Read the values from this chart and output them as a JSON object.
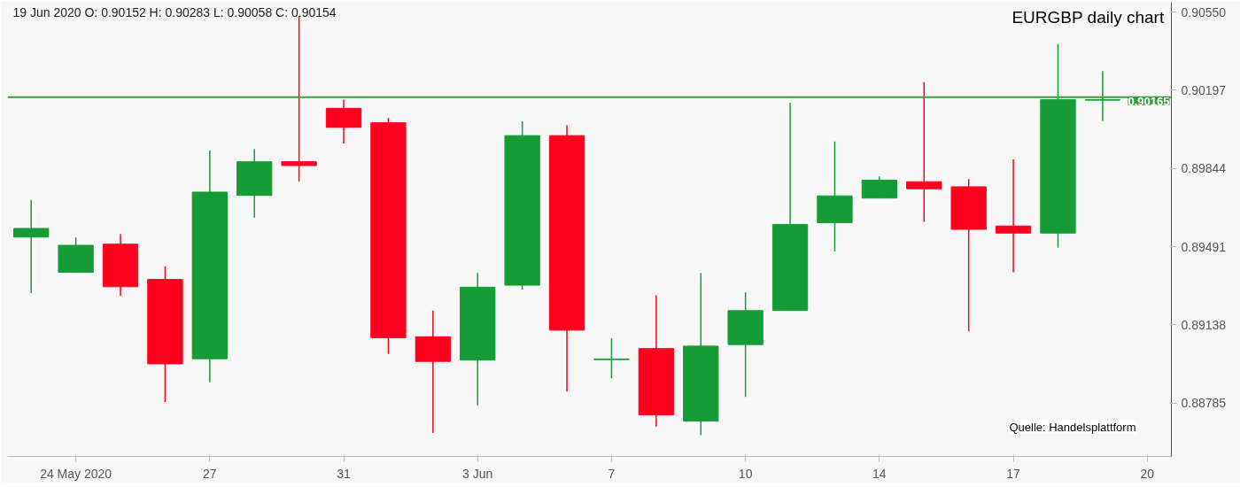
{
  "chart_data": {
    "type": "candlestick",
    "title": "EURGBP daily chart",
    "annotations": [
      "19 Jun 2020 O: 0.90152 H: 0.90283 L: 0.90058 C: 0.90154",
      "Quelle: Handelsplattform"
    ],
    "categories": [
      null,
      "24 May 2020",
      null,
      null,
      "27",
      null,
      null,
      "31",
      null,
      null,
      "3 Jun",
      null,
      null,
      "7",
      null,
      null,
      "10",
      null,
      null,
      "14",
      null,
      null,
      "17",
      null,
      null,
      "20"
    ],
    "ohlc": [
      [
        0.89534,
        0.89702,
        0.89281,
        0.89573
      ],
      [
        0.89375,
        0.89532,
        0.89375,
        0.89497
      ],
      [
        0.89502,
        0.89548,
        0.89268,
        0.8931
      ],
      [
        0.89343,
        0.89402,
        0.8879,
        0.88962
      ],
      [
        0.88985,
        0.89925,
        0.88879,
        0.89737
      ],
      [
        0.89722,
        0.89932,
        0.89622,
        0.89874
      ],
      [
        0.89874,
        0.90532,
        0.89786,
        0.89857
      ],
      [
        0.90115,
        0.90154,
        0.89957,
        0.90029
      ],
      [
        0.9005,
        0.90072,
        0.89007,
        0.8908
      ],
      [
        0.89084,
        0.89202,
        0.8865,
        0.88973
      ],
      [
        0.88979,
        0.89372,
        0.88775,
        0.89308
      ],
      [
        0.89317,
        0.90057,
        0.89297,
        0.89992
      ],
      [
        0.89992,
        0.90039,
        0.88837,
        0.89114
      ],
      [
        0.88981,
        0.89077,
        0.88897,
        0.88984
      ],
      [
        0.89031,
        0.89271,
        0.88679,
        0.88732
      ],
      [
        0.88704,
        0.89372,
        0.8864,
        0.89042
      ],
      [
        0.89049,
        0.89285,
        0.88813,
        0.89202
      ],
      [
        0.89203,
        0.9014,
        0.89203,
        0.89591
      ],
      [
        0.89599,
        0.89966,
        0.89469,
        0.8972
      ],
      [
        0.8971,
        0.89808,
        0.8971,
        0.89791
      ],
      [
        0.89784,
        0.90233,
        0.89603,
        0.89752
      ],
      [
        0.89761,
        0.89796,
        0.89109,
        0.89569
      ],
      [
        0.89584,
        0.89885,
        0.89375,
        0.89552
      ],
      [
        0.89552,
        0.90405,
        0.89486,
        0.90154
      ],
      [
        0.90152,
        0.90283,
        0.90058,
        0.90154
      ],
      null
    ],
    "colors": [
      "#169c36",
      "#169c36",
      "#ff001f",
      "#ff001f",
      "#169c36",
      "#169c36",
      "#ff001f",
      "#ff001f",
      "#ff001f",
      "#ff001f",
      "#169c36",
      "#169c36",
      "#ff001f",
      "#169c36",
      "#ff001f",
      "#169c36",
      "#169c36",
      "#169c36",
      "#169c36",
      "#169c36",
      "#ff001f",
      "#ff001f",
      "#ff001f",
      "#169c36",
      "#169c36",
      null
    ],
    "ylim": [
      0.88544,
      0.90594
    ],
    "yticks": [
      0.88785,
      0.89138,
      0.89491,
      0.89844,
      0.90197,
      {
        "value": 0.9055,
        "label": "0.90550"
      }
    ],
    "ref_lines": [
      {
        "axis": "y",
        "value": 0.90165,
        "label": "0.90165",
        "color": "#3f9a3f"
      }
    ],
    "grid": false
  }
}
